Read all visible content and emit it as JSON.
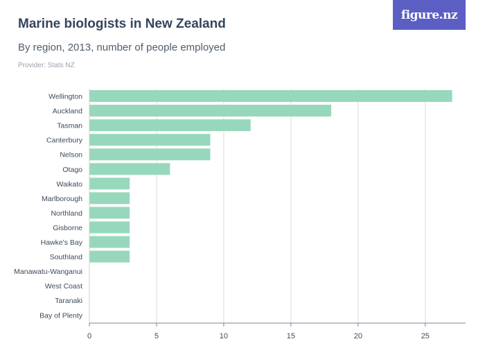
{
  "header": {
    "title": "Marine biologists in New Zealand",
    "subtitle": "By region, 2013, number of people employed",
    "provider": "Provider: Stats NZ"
  },
  "logo": {
    "text": "figure.nz",
    "background": "#5b5fc4"
  },
  "chart_data": {
    "type": "bar",
    "orientation": "horizontal",
    "title": "Marine biologists in New Zealand",
    "subtitle": "By region, 2013, number of people employed",
    "xlabel": "",
    "ylabel": "",
    "categories": [
      "Wellington",
      "Auckland",
      "Tasman",
      "Canterbury",
      "Nelson",
      "Otago",
      "Waikato",
      "Marlborough",
      "Northland",
      "Gisborne",
      "Hawke's Bay",
      "Southland",
      "Manawatu-Wanganui",
      "West Coast",
      "Taranaki",
      "Bay of Plenty"
    ],
    "values": [
      27,
      18,
      12,
      9,
      9,
      6,
      3,
      3,
      3,
      3,
      3,
      3,
      0,
      0,
      0,
      0
    ],
    "xlim": [
      0,
      28
    ],
    "xticks": [
      0,
      5,
      10,
      15,
      20,
      25
    ],
    "grid": true,
    "legend": "none",
    "bar_color": "#97d8bd"
  }
}
